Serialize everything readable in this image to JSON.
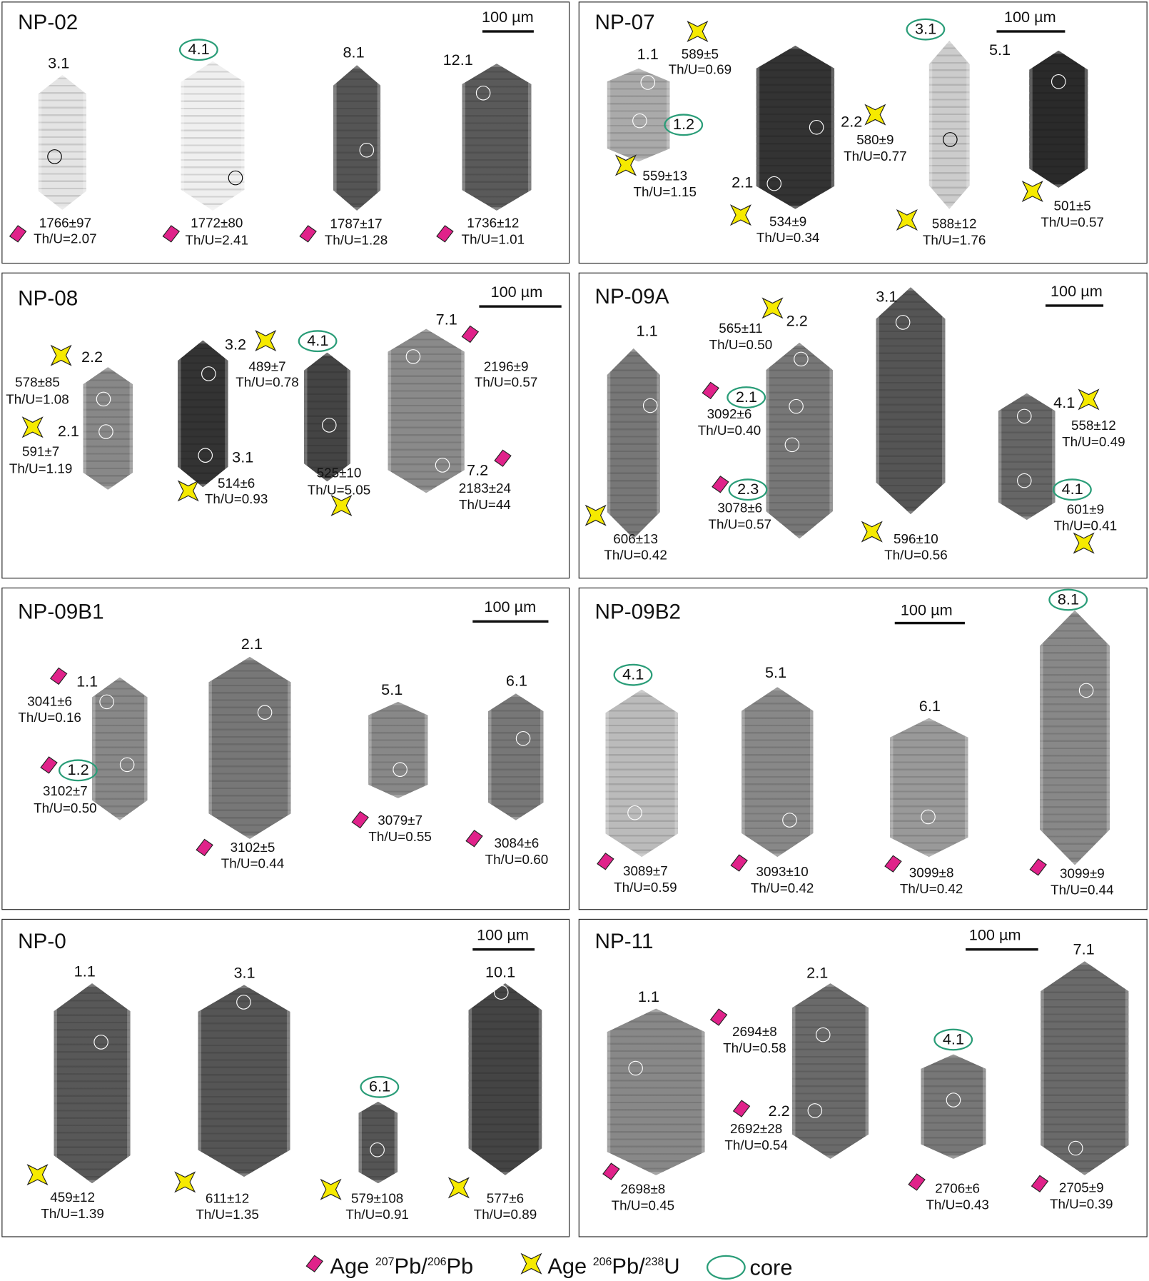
{
  "colors": {
    "pb207_marker": "#e0228a",
    "pb206_marker": "#f6ea00",
    "core_ring": "#2a9d78"
  },
  "panels": [
    {
      "title": "NP-02",
      "scale_label": "100 µm",
      "spots": [
        {
          "label": "3.1",
          "core": false
        },
        {
          "label": "4.1",
          "core": true
        },
        {
          "label": "8.1",
          "core": false
        },
        {
          "label": "12.1",
          "core": false
        }
      ],
      "analyses": [
        {
          "age": "1766±97",
          "thu": "Th/U=2.07",
          "method": "207Pb/206Pb"
        },
        {
          "age": "1772±80",
          "thu": "Th/U=2.41",
          "method": "207Pb/206Pb"
        },
        {
          "age": "1787±17",
          "thu": "Th/U=1.28",
          "method": "207Pb/206Pb"
        },
        {
          "age": "1736±12",
          "thu": "Th/U=1.01",
          "method": "207Pb/206Pb"
        }
      ]
    },
    {
      "title": "NP-07",
      "scale_label": "100 µm",
      "spots": [
        {
          "label": "1.1",
          "core": false
        },
        {
          "label": "1.2",
          "core": true
        },
        {
          "label": "2.1",
          "core": false
        },
        {
          "label": "2.2",
          "core": false
        },
        {
          "label": "3.1",
          "core": true
        },
        {
          "label": "5.1",
          "core": false
        }
      ],
      "analyses": [
        {
          "age": "589±5",
          "thu": "Th/U=0.69",
          "method": "206Pb/238U"
        },
        {
          "age": "559±13",
          "thu": "Th/U=1.15",
          "method": "206Pb/238U"
        },
        {
          "age": "580±9",
          "thu": "Th/U=0.77",
          "method": "206Pb/238U"
        },
        {
          "age": "534±9",
          "thu": "Th/U=0.34",
          "method": "206Pb/238U"
        },
        {
          "age": "588±12",
          "thu": "Th/U=1.76",
          "method": "206Pb/238U"
        },
        {
          "age": "501±5",
          "thu": "Th/U=0.57",
          "method": "206Pb/238U"
        }
      ]
    },
    {
      "title": "NP-08",
      "scale_label": "100 µm",
      "spots": [
        {
          "label": "2.2",
          "core": false
        },
        {
          "label": "2.1",
          "core": false
        },
        {
          "label": "3.2",
          "core": false
        },
        {
          "label": "3.1",
          "core": false
        },
        {
          "label": "4.1",
          "core": true
        },
        {
          "label": "7.1",
          "core": false
        },
        {
          "label": "7.2",
          "core": false
        }
      ],
      "analyses": [
        {
          "age": "578±85",
          "thu": "Th/U=1.08",
          "method": "206Pb/238U"
        },
        {
          "age": "591±7",
          "thu": "Th/U=1.19",
          "method": "206Pb/238U"
        },
        {
          "age": "489±7",
          "thu": "Th/U=0.78",
          "method": "206Pb/238U"
        },
        {
          "age": "514±6",
          "thu": "Th/U=0.93",
          "method": "206Pb/238U"
        },
        {
          "age": "525±10",
          "thu": "Th/U=5.05",
          "method": "206Pb/238U"
        },
        {
          "age": "2196±9",
          "thu": "Th/U=0.57",
          "method": "207Pb/206Pb"
        },
        {
          "age": "2183±24",
          "thu": "Th/U=44",
          "method": "207Pb/206Pb"
        }
      ]
    },
    {
      "title": "NP-09A",
      "scale_label": "100 µm",
      "spots": [
        {
          "label": "1.1",
          "core": false
        },
        {
          "label": "2.2",
          "core": false
        },
        {
          "label": "2.1",
          "core": true
        },
        {
          "label": "2.3",
          "core": true
        },
        {
          "label": "3.1",
          "core": false
        },
        {
          "label": "4.1",
          "core": false
        },
        {
          "label": "4.1",
          "core": true
        }
      ],
      "analyses": [
        {
          "age": "565±11",
          "thu": "Th/U=0.50",
          "method": "206Pb/238U"
        },
        {
          "age": "3092±6",
          "thu": "Th/U=0.40",
          "method": "207Pb/206Pb"
        },
        {
          "age": "3078±6",
          "thu": "Th/U=0.57",
          "method": "207Pb/206Pb"
        },
        {
          "age": "606±13",
          "thu": "Th/U=0.42",
          "method": "206Pb/238U"
        },
        {
          "age": "596±10",
          "thu": "Th/U=0.56",
          "method": "206Pb/238U"
        },
        {
          "age": "558±12",
          "thu": "Th/U=0.49",
          "method": "206Pb/238U"
        },
        {
          "age": "601±9",
          "thu": "Th/U=0.41",
          "method": "206Pb/238U"
        }
      ]
    },
    {
      "title": "NP-09B1",
      "scale_label": "100 µm",
      "spots": [
        {
          "label": "1.1",
          "core": false
        },
        {
          "label": "1.2",
          "core": true
        },
        {
          "label": "2.1",
          "core": false
        },
        {
          "label": "5.1",
          "core": false
        },
        {
          "label": "6.1",
          "core": false
        }
      ],
      "analyses": [
        {
          "age": "3041±6",
          "thu": "Th/U=0.16",
          "method": "207Pb/206Pb"
        },
        {
          "age": "3102±7",
          "thu": "Th/U=0.50",
          "method": "207Pb/206Pb"
        },
        {
          "age": "3102±5",
          "thu": "Th/U=0.44",
          "method": "207Pb/206Pb"
        },
        {
          "age": "3079±7",
          "thu": "Th/U=0.55",
          "method": "207Pb/206Pb"
        },
        {
          "age": "3084±6",
          "thu": "Th/U=0.60",
          "method": "207Pb/206Pb"
        }
      ]
    },
    {
      "title": "NP-09B2",
      "scale_label": "100 µm",
      "spots": [
        {
          "label": "4.1",
          "core": true
        },
        {
          "label": "5.1",
          "core": false
        },
        {
          "label": "6.1",
          "core": false
        },
        {
          "label": "8.1",
          "core": true
        }
      ],
      "analyses": [
        {
          "age": "3089±7",
          "thu": "Th/U=0.59",
          "method": "207Pb/206Pb"
        },
        {
          "age": "3093±10",
          "thu": "Th/U=0.42",
          "method": "207Pb/206Pb"
        },
        {
          "age": "3099±8",
          "thu": "Th/U=0.42",
          "method": "207Pb/206Pb"
        },
        {
          "age": "3099±9",
          "thu": "Th/U=0.44",
          "method": "207Pb/206Pb"
        }
      ]
    },
    {
      "title": "NP-0",
      "scale_label": "100 µm",
      "spots": [
        {
          "label": "1.1",
          "core": false
        },
        {
          "label": "3.1",
          "core": false
        },
        {
          "label": "6.1",
          "core": true
        },
        {
          "label": "10.1",
          "core": false
        }
      ],
      "analyses": [
        {
          "age": "459±12",
          "thu": "Th/U=1.39",
          "method": "206Pb/238U"
        },
        {
          "age": "611±12",
          "thu": "Th/U=1.35",
          "method": "206Pb/238U"
        },
        {
          "age": "579±108",
          "thu": "Th/U=0.91",
          "method": "206Pb/238U"
        },
        {
          "age": "577±6",
          "thu": "Th/U=0.89",
          "method": "206Pb/238U"
        }
      ]
    },
    {
      "title": "NP-11",
      "scale_label": "100 µm",
      "spots": [
        {
          "label": "1.1",
          "core": false
        },
        {
          "label": "2.1",
          "core": false
        },
        {
          "label": "2.2",
          "core": false
        },
        {
          "label": "4.1",
          "core": true
        },
        {
          "label": "7.1",
          "core": false
        }
      ],
      "analyses": [
        {
          "age": "2694±8",
          "thu": "Th/U=0.58",
          "method": "207Pb/206Pb"
        },
        {
          "age": "2692±28",
          "thu": "Th/U=0.54",
          "method": "207Pb/206Pb"
        },
        {
          "age": "2698±8",
          "thu": "Th/U=0.45",
          "method": "207Pb/206Pb"
        },
        {
          "age": "2706±6",
          "thu": "Th/U=0.43",
          "method": "207Pb/206Pb"
        },
        {
          "age": "2705±9",
          "thu": "Th/U=0.39",
          "method": "207Pb/206Pb"
        }
      ]
    }
  ],
  "legend": {
    "pb207": {
      "prefix": "Age ",
      "sup1": "207",
      "mid": "Pb/",
      "sup2": "206",
      "suffix": "Pb"
    },
    "pb206": {
      "prefix": "Age ",
      "sup1": "206",
      "mid": "Pb/",
      "sup2": "238",
      "suffix": "U"
    },
    "core": "core"
  }
}
